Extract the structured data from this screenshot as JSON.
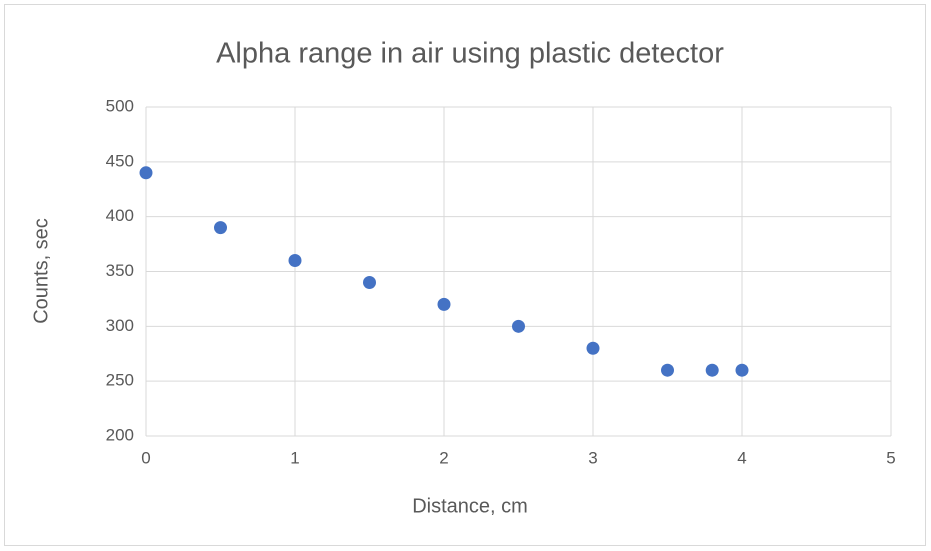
{
  "chart_data": {
    "type": "scatter",
    "title": "Alpha range in air using plastic detector",
    "x_label": "Distance, cm",
    "y_label": "Counts, sec",
    "x": [
      0,
      0.5,
      1,
      1.5,
      2,
      2.5,
      3,
      3.5,
      3.8,
      4
    ],
    "values": [
      440,
      390,
      360,
      340,
      320,
      300,
      280,
      260,
      260,
      260
    ],
    "color": "#4472c4",
    "xlim": [
      0,
      5
    ],
    "xticks": [
      0,
      1,
      2,
      3,
      4,
      5
    ],
    "ylim": [
      200,
      500
    ],
    "yticks": [
      200,
      250,
      300,
      350,
      400,
      450,
      500
    ],
    "grid": true
  }
}
